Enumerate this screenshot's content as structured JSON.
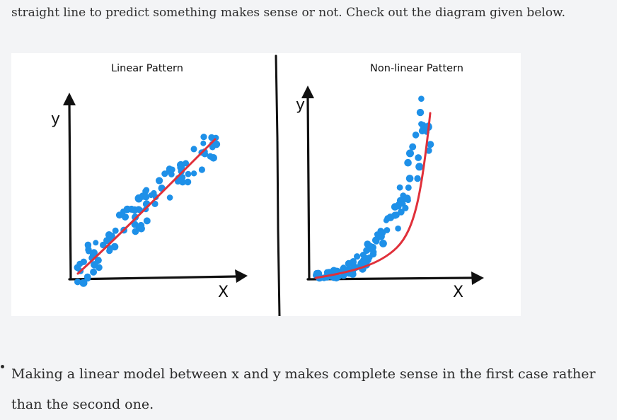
{
  "intro": {
    "text": "straight line to predict something makes sense or not. Check out the diagram given below."
  },
  "figure": {
    "left_panel": {
      "title": "Linear Pattern",
      "y_label": "y",
      "x_label": "X"
    },
    "right_panel": {
      "title": "Non-linear Pattern",
      "y_label": "y",
      "x_label": "X"
    },
    "colors": {
      "points": "#1e90e8",
      "fit_line": "#e0303a",
      "axes": "#111111"
    }
  },
  "bullet": {
    "text": "Making a linear model between x and y makes complete sense in the first case rather than the second one."
  }
}
